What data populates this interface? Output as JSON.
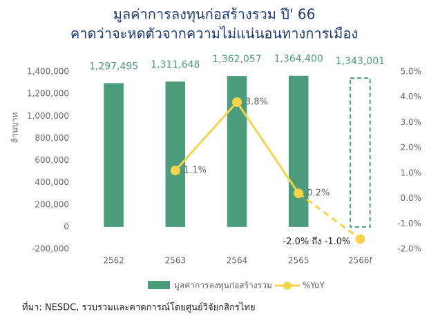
{
  "chart_data": {
    "type": "bar_line",
    "title": [
      "มูลค่าการลงทุนก่อสร้างรวม ปี' 66",
      "คาดว่าจะหดตัวจากความไม่แน่นอนทางการเมือง"
    ],
    "y_label": "ล้านบาท",
    "categories": [
      "2562",
      "2563",
      "2564",
      "2565",
      "2566f"
    ],
    "series": [
      {
        "name": "มูลค่าการลงทุนก่อสร้างรวม",
        "type": "bar",
        "color": "#4a9c7b",
        "values": [
          1297495,
          1311648,
          1362057,
          1364400,
          1343001
        ],
        "value_labels": [
          "1,297,495",
          "1,311,648",
          "1,362,057",
          "1,364,400",
          "1,343,001"
        ]
      },
      {
        "name": "%YoY",
        "type": "line",
        "axis": "y2",
        "color": "#f6d44a",
        "values": [
          null,
          1.1,
          3.8,
          0.2,
          -1.6
        ],
        "value_labels": [
          null,
          "1.1%",
          "3.8%",
          "0.2%",
          null
        ]
      }
    ],
    "annotations": [
      "-2.0% ถึง -1.0%"
    ],
    "forecast_last": true,
    "ylim": [
      -200000,
      1400000
    ],
    "yticks": [
      {
        "value": -200000,
        "label": "-200,000"
      },
      0,
      {
        "value": 200000,
        "label": "200,000"
      },
      {
        "value": 400000,
        "label": "400,000"
      },
      {
        "value": 600000,
        "label": "600,000"
      },
      {
        "value": 800000,
        "label": "800,000"
      },
      {
        "value": 1000000,
        "label": "1,000,000"
      },
      {
        "value": 1200000,
        "label": "1,200,000"
      },
      {
        "value": 1400000,
        "label": "1,400,000"
      }
    ],
    "y2lim": [
      -2,
      5
    ],
    "y2ticks": [
      {
        "value": -2,
        "label": "-2.0%"
      },
      {
        "value": -1,
        "label": "-1.0%"
      },
      {
        "value": 0,
        "label": "0.0%"
      },
      {
        "value": 1,
        "label": "1.0%"
      },
      {
        "value": 2,
        "label": "2.0%"
      },
      {
        "value": 3,
        "label": "3.0%"
      },
      {
        "value": 4,
        "label": "4.0%"
      },
      {
        "value": 5,
        "label": "5.0%"
      }
    ],
    "legend": "bottom",
    "source": "ที่มา: NESDC, รวบรวมและคาดการณ์โดยศูนย์วิจัยกสิกรไทย"
  }
}
